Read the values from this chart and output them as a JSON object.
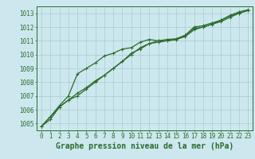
{
  "title": "Graphe pression niveau de la mer (hPa)",
  "background_color": "#cce8ee",
  "grid_color": "#aacccc",
  "line_color": "#2d6a2d",
  "xlim": [
    -0.5,
    23.5
  ],
  "ylim": [
    1004.5,
    1013.5
  ],
  "yticks": [
    1005,
    1006,
    1007,
    1008,
    1009,
    1010,
    1011,
    1012,
    1013
  ],
  "xticks": [
    0,
    1,
    2,
    3,
    4,
    5,
    6,
    7,
    8,
    9,
    10,
    11,
    12,
    13,
    14,
    15,
    16,
    17,
    18,
    19,
    20,
    21,
    22,
    23
  ],
  "hours": [
    0,
    1,
    2,
    3,
    4,
    5,
    6,
    7,
    8,
    9,
    10,
    11,
    12,
    13,
    14,
    15,
    16,
    17,
    18,
    19,
    20,
    21,
    22,
    23
  ],
  "line1": [
    1004.8,
    1005.3,
    1006.2,
    1006.7,
    1007.0,
    1007.5,
    1008.0,
    1008.5,
    1009.0,
    1009.5,
    1010.0,
    1010.5,
    1010.8,
    1010.9,
    1011.0,
    1011.1,
    1011.3,
    1011.8,
    1012.0,
    1012.2,
    1012.4,
    1012.7,
    1013.0,
    1013.2
  ],
  "line2": [
    1004.8,
    1005.5,
    1006.3,
    1007.0,
    1008.6,
    1009.0,
    1009.4,
    1009.9,
    1010.1,
    1010.4,
    1010.5,
    1010.9,
    1011.1,
    1011.0,
    1011.0,
    1011.1,
    1011.4,
    1011.9,
    1012.0,
    1012.2,
    1012.5,
    1012.8,
    1013.0,
    1013.2
  ],
  "line3": [
    1004.8,
    1005.5,
    1006.2,
    1006.7,
    1007.2,
    1007.6,
    1008.1,
    1008.5,
    1009.0,
    1009.5,
    1010.1,
    1010.4,
    1010.8,
    1011.0,
    1011.1,
    1011.15,
    1011.4,
    1012.0,
    1012.1,
    1012.3,
    1012.5,
    1012.85,
    1013.1,
    1013.25
  ],
  "marker": "+",
  "markersize": 3,
  "linewidth": 0.9,
  "tick_fontsize": 5.5,
  "label_fontsize": 7,
  "tick_color": "#2d6a2d",
  "label_color": "#2d6a2d"
}
